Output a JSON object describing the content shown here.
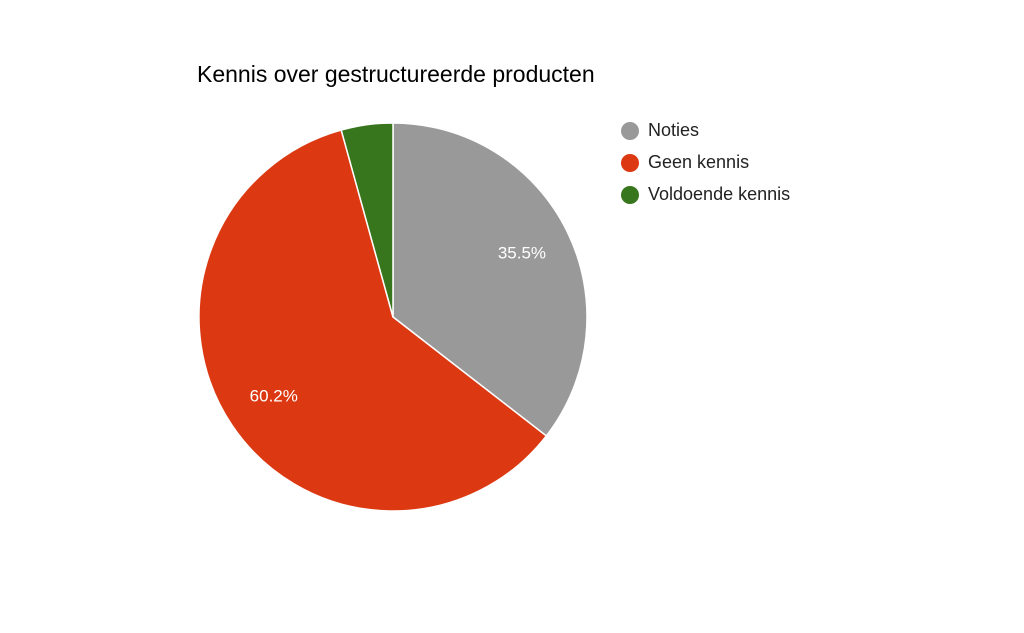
{
  "chart_data": {
    "type": "pie",
    "title": "Kennis over gestructureerde producten",
    "categories": [
      "Noties",
      "Geen kennis",
      "Voldoende kennis"
    ],
    "values": [
      35.5,
      60.2,
      4.3
    ],
    "value_labels": [
      "35.5%",
      "60.2%",
      null
    ],
    "colors": [
      "#999999",
      "#dc3912",
      "#38761d"
    ],
    "legend": "right"
  }
}
